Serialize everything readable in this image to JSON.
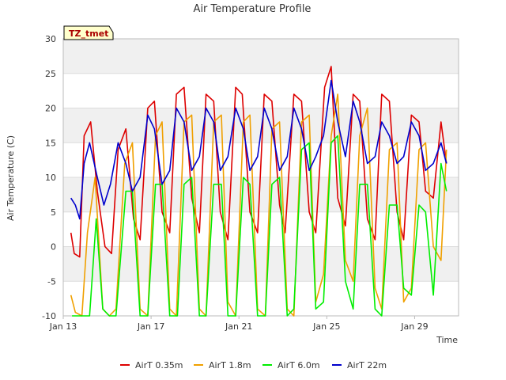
{
  "chart_data": {
    "type": "line",
    "title": "Air Temperature Profile",
    "xlabel": "Time",
    "ylabel": "Air Temperature (C)",
    "badge": "TZ_tmet",
    "x_ticks": [
      "Jan 13",
      "Jan 17",
      "Jan 21",
      "Jan 25",
      "Jan 29"
    ],
    "x_tick_days": [
      13,
      17,
      21,
      25,
      29
    ],
    "xlim": [
      13,
      31
    ],
    "ylim": [
      -10,
      30
    ],
    "y_ticks": [
      -10,
      -5,
      0,
      5,
      10,
      15,
      20,
      25,
      30
    ],
    "colors": {
      "band": "#f0f0f0",
      "grid": "#dcdcdc",
      "axis": "#bbbbbb",
      "badge_bg": "#ffffcc"
    },
    "series": [
      {
        "name": "AirT 0.35m",
        "color": "#dd0000",
        "x": [
          13.35,
          13.5,
          13.75,
          13.95,
          14.25,
          14.55,
          14.9,
          15.2,
          15.5,
          15.85,
          16.2,
          16.5,
          16.85,
          17.15,
          17.5,
          17.85,
          18.15,
          18.5,
          18.85,
          19.2,
          19.5,
          19.85,
          20.15,
          20.5,
          20.85,
          21.15,
          21.5,
          21.85,
          22.15,
          22.5,
          22.85,
          23.1,
          23.5,
          23.85,
          24.2,
          24.5,
          24.9,
          25.2,
          25.5,
          25.85,
          26.2,
          26.5,
          26.85,
          27.2,
          27.5,
          27.85,
          28.2,
          28.5,
          28.85,
          29.2,
          29.5,
          29.85,
          30.2,
          30.45
        ],
        "y": [
          2,
          -1,
          -1.5,
          16,
          18,
          8,
          0,
          -1,
          14,
          17,
          4,
          1,
          20,
          21,
          5,
          2,
          22,
          23,
          7,
          2,
          22,
          21,
          5,
          1,
          23,
          22,
          5,
          2,
          22,
          21,
          6,
          2,
          22,
          21,
          5,
          2,
          23,
          26,
          7,
          3,
          22,
          21,
          4,
          1,
          22,
          21,
          5,
          1,
          19,
          18,
          8,
          7,
          18,
          12
        ]
      },
      {
        "name": "AirT 1.8m",
        "color": "#f0a000",
        "x": [
          13.35,
          13.55,
          13.85,
          14.1,
          14.45,
          14.8,
          15.1,
          15.4,
          15.8,
          16.15,
          16.5,
          16.85,
          17.2,
          17.5,
          17.85,
          18.15,
          18.5,
          18.85,
          19.2,
          19.5,
          19.85,
          20.2,
          20.5,
          20.85,
          21.2,
          21.5,
          21.85,
          22.2,
          22.5,
          22.85,
          23.2,
          23.5,
          23.85,
          24.2,
          24.5,
          24.85,
          25.2,
          25.5,
          25.85,
          26.2,
          26.5,
          26.85,
          27.2,
          27.5,
          27.85,
          28.2,
          28.5,
          28.85,
          29.2,
          29.5,
          29.85,
          30.2,
          30.45
        ],
        "y": [
          -7,
          -9.5,
          -10,
          2,
          10,
          -9,
          -10,
          -9,
          12,
          15,
          -9,
          -10,
          16,
          18,
          -9,
          -10,
          18,
          19,
          -9,
          -10,
          18,
          19,
          -8,
          -10,
          18,
          19,
          -9,
          -10,
          17,
          18,
          -9,
          -10,
          18,
          19,
          -8,
          -4,
          16,
          22,
          -2,
          -5,
          16,
          20,
          -6,
          -9,
          14,
          15,
          -8,
          -6,
          14,
          15,
          0,
          -2,
          14
        ]
      },
      {
        "name": "AirT 6.0m",
        "color": "#00ee00",
        "x": [
          13.4,
          13.65,
          13.9,
          14.2,
          14.5,
          14.8,
          15.1,
          15.4,
          15.85,
          16.15,
          16.5,
          16.85,
          17.2,
          17.5,
          17.85,
          18.2,
          18.5,
          18.85,
          19.2,
          19.5,
          19.85,
          20.2,
          20.5,
          20.85,
          21.2,
          21.5,
          21.85,
          22.2,
          22.5,
          22.85,
          23.2,
          23.5,
          23.85,
          24.2,
          24.5,
          24.85,
          25.2,
          25.5,
          25.85,
          26.2,
          26.5,
          26.85,
          27.2,
          27.5,
          27.85,
          28.2,
          28.5,
          28.85,
          29.2,
          29.5,
          29.85,
          30.2,
          30.45
        ],
        "y": [
          -10,
          -10,
          -10,
          -10,
          4,
          -9,
          -10,
          -10,
          8,
          8,
          -10,
          -10,
          9,
          9,
          -10,
          -10,
          9,
          10,
          -10,
          -10,
          9,
          9,
          -10,
          -10,
          10,
          9,
          -10,
          -10,
          9,
          10,
          -10,
          -9,
          14,
          15,
          -9,
          -8,
          15,
          16,
          -5,
          -9,
          9,
          9,
          -9,
          -10,
          6,
          6,
          -6,
          -7,
          6,
          5,
          -7,
          12,
          8
        ]
      },
      {
        "name": "AirT 22m",
        "color": "#0000cc",
        "x": [
          13.35,
          13.55,
          13.75,
          13.95,
          14.2,
          14.55,
          14.85,
          15.15,
          15.5,
          15.85,
          16.15,
          16.5,
          16.85,
          17.15,
          17.5,
          17.85,
          18.15,
          18.5,
          18.85,
          19.2,
          19.5,
          19.85,
          20.15,
          20.5,
          20.85,
          21.2,
          21.5,
          21.85,
          22.15,
          22.5,
          22.85,
          23.2,
          23.5,
          23.85,
          24.2,
          24.5,
          24.85,
          25.2,
          25.5,
          25.85,
          26.2,
          26.5,
          26.85,
          27.2,
          27.5,
          27.85,
          28.2,
          28.5,
          28.85,
          29.2,
          29.5,
          29.85,
          30.2,
          30.45
        ],
        "y": [
          7,
          6,
          4,
          12,
          15,
          10,
          6,
          9,
          15,
          12,
          8,
          10,
          19,
          17,
          9,
          11,
          20,
          18,
          11,
          13,
          20,
          18,
          11,
          13,
          20,
          17,
          11,
          13,
          20,
          17,
          11,
          13,
          20,
          17,
          11,
          13,
          16,
          24,
          18,
          13,
          21,
          18,
          12,
          13,
          18,
          16,
          12,
          13,
          18,
          16,
          11,
          12,
          15,
          12
        ]
      }
    ]
  }
}
